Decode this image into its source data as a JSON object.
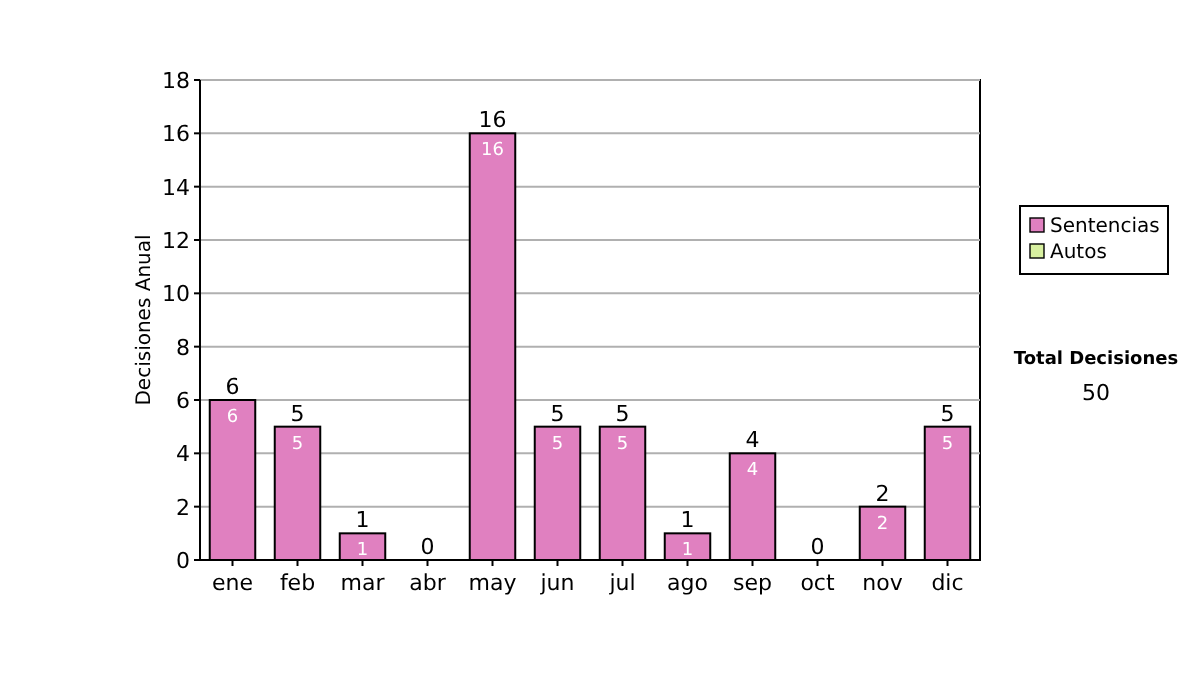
{
  "chart_data": {
    "type": "bar",
    "ylabel": "Decisiones Anual",
    "categories": [
      "ene",
      "feb",
      "mar",
      "abr",
      "may",
      "jun",
      "jul",
      "ago",
      "sep",
      "oct",
      "nov",
      "dic"
    ],
    "series": [
      {
        "name": "Sentencias",
        "color": "#e080c0",
        "values": [
          6,
          5,
          1,
          0,
          16,
          5,
          5,
          1,
          4,
          0,
          2,
          5
        ],
        "value_labels": [
          "6",
          "5",
          "1",
          null,
          "16",
          "5",
          "5",
          "1",
          "4",
          null,
          "2",
          "5"
        ]
      },
      {
        "name": "Autos",
        "color": "#d8f0a0",
        "values": [
          0,
          0,
          0,
          0,
          0,
          0,
          0,
          0,
          0,
          0,
          0,
          0
        ],
        "value_labels": [
          null,
          null,
          null,
          null,
          null,
          null,
          null,
          null,
          null,
          null,
          null,
          null
        ]
      }
    ],
    "stacked": true,
    "totals": [
      "6",
      "5",
      "1",
      "0",
      "16",
      "5",
      "5",
      "1",
      "4",
      "0",
      "2",
      "5"
    ],
    "ylim": [
      0,
      18
    ],
    "yticks": [
      0,
      2,
      4,
      6,
      8,
      10,
      12,
      14,
      16,
      18
    ],
    "grid": "y",
    "legend": "right",
    "annotations": [
      "Total Decisiones",
      "50"
    ]
  }
}
